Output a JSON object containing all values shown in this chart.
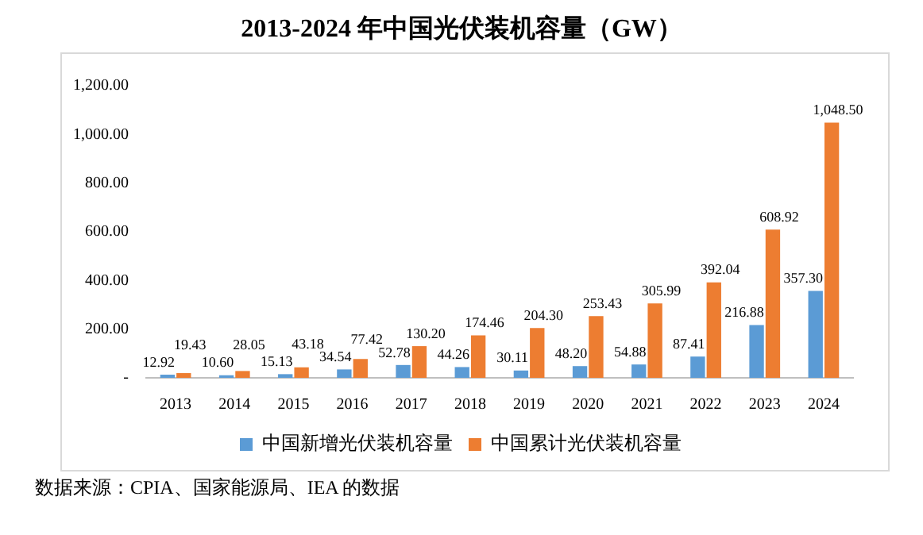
{
  "chart_data": {
    "type": "bar",
    "title": "2013-2024 年中国光伏装机容量（GW）",
    "categories": [
      "2013",
      "2014",
      "2015",
      "2016",
      "2017",
      "2018",
      "2019",
      "2020",
      "2021",
      "2022",
      "2023",
      "2024"
    ],
    "series": [
      {
        "name": "中国新增光伏装机容量",
        "color": "#5b9bd5",
        "values": [
          12.92,
          10.6,
          15.13,
          34.54,
          52.78,
          44.26,
          30.11,
          48.2,
          54.88,
          87.41,
          216.88,
          357.3
        ],
        "value_labels": [
          "12.92",
          "10.60",
          "15.13",
          "34.54",
          "52.78",
          "44.26",
          "30.11",
          "48.20",
          "54.88",
          "87.41",
          "216.88",
          "357.30"
        ]
      },
      {
        "name": "中国累计光伏装机容量",
        "color": "#ed7d31",
        "values": [
          19.43,
          28.05,
          43.18,
          77.42,
          130.2,
          174.46,
          204.3,
          253.43,
          305.99,
          392.04,
          608.92,
          1048.5
        ],
        "value_labels": [
          "19.43",
          "28.05",
          "43.18",
          "77.42",
          "130.20",
          "174.46",
          "204.30",
          "253.43",
          "305.99",
          "392.04",
          "608.92",
          "1,048.50"
        ]
      }
    ],
    "ylim": [
      0,
      1200
    ],
    "yticks": [
      {
        "value": 0,
        "label": "-"
      },
      {
        "value": 200,
        "label": "200.00"
      },
      {
        "value": 400,
        "label": "400.00"
      },
      {
        "value": 600,
        "label": "600.00"
      },
      {
        "value": 800,
        "label": "800.00"
      },
      {
        "value": 1000,
        "label": "1,000.00"
      },
      {
        "value": 1200,
        "label": "1,200.00"
      }
    ],
    "grid": false,
    "legend": "bottom",
    "annotations": [
      "数据来源：CPIA、国家能源局、IEA 的数据"
    ]
  }
}
